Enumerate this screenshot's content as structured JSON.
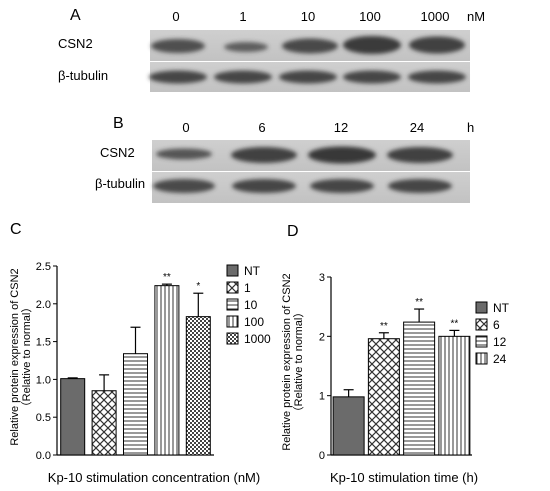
{
  "panel_a": {
    "letter": "A",
    "doses": [
      "0",
      "1",
      "10",
      "100",
      "1000"
    ],
    "unit": "nM",
    "row_labels": [
      "CSN2",
      "β-tubulin"
    ]
  },
  "panel_b": {
    "letter": "B",
    "times": [
      "0",
      "6",
      "12",
      "24"
    ],
    "unit": "h",
    "row_labels": [
      "CSN2",
      "β-tubulin"
    ]
  },
  "chart_data": [
    {
      "panel": "C",
      "type": "bar",
      "xlabel": "Kp-10 stimulation concentration (nM)",
      "ylabel_line1": "Relative protein expression of CSN2",
      "ylabel_line2": "（Relative to normal）",
      "ylim": [
        0,
        2.5
      ],
      "yticks": [
        "0.0",
        "0.5",
        "1.0",
        "1.5",
        "2.0",
        "2.5"
      ],
      "categories": [
        "NT",
        "1",
        "10",
        "100",
        "1000"
      ],
      "values": [
        1.01,
        0.85,
        1.34,
        2.24,
        1.83
      ],
      "errors": [
        0.01,
        0.21,
        0.35,
        0.02,
        0.31
      ],
      "significance": [
        "",
        "",
        "",
        "**",
        "*"
      ],
      "legend": [
        "NT",
        "1",
        "10",
        "100",
        "1000"
      ],
      "legend_position": "right"
    },
    {
      "panel": "D",
      "type": "bar",
      "xlabel": "Kp-10 stimulation time (h)",
      "ylabel_line1": "Relative protein expression of CSN2",
      "ylabel_line2": "（Relative to normal）",
      "ylim": [
        0,
        3
      ],
      "yticks": [
        "0",
        "1",
        "2",
        "3"
      ],
      "categories": [
        "NT",
        "6",
        "12",
        "24"
      ],
      "values": [
        0.98,
        1.96,
        2.24,
        2.0
      ],
      "errors": [
        0.12,
        0.1,
        0.22,
        0.1
      ],
      "significance": [
        "",
        "**",
        "**",
        "**"
      ],
      "legend": [
        "NT",
        "6",
        "12",
        "24"
      ],
      "legend_position": "right"
    }
  ]
}
